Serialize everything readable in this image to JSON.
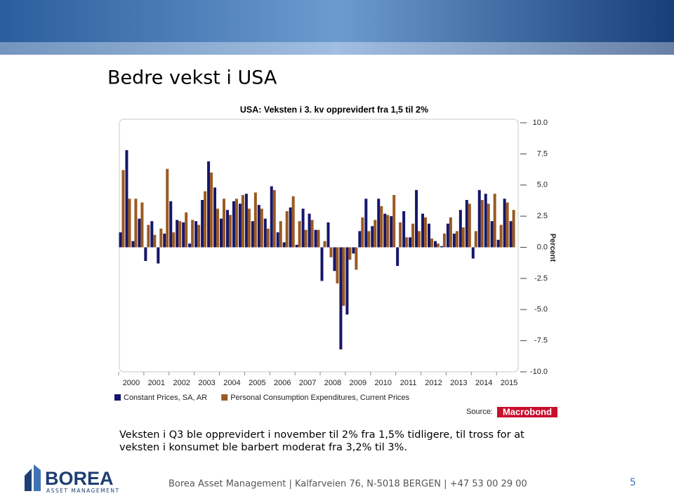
{
  "header": {
    "title": "Bedre vekst i USA"
  },
  "chart_data": {
    "type": "bar",
    "title": "USA: Veksten i 3. kv oppre­vidert fra 1,5 til 2%",
    "ylabel": "Percent",
    "categories": [
      "2000",
      null,
      null,
      null,
      "2001",
      null,
      null,
      null,
      "2002",
      null,
      null,
      null,
      "2003",
      null,
      null,
      null,
      "2004",
      null,
      null,
      null,
      "2005",
      null,
      null,
      null,
      "2006",
      null,
      null,
      null,
      "2007",
      null,
      null,
      null,
      "2008",
      null,
      null,
      null,
      "2009",
      null,
      null,
      null,
      "2010",
      null,
      null,
      null,
      "2011",
      null,
      null,
      null,
      "2012",
      null,
      null,
      null,
      "2013",
      null,
      null,
      null,
      "2014",
      null,
      null,
      null,
      "2015",
      null,
      null
    ],
    "series": [
      {
        "name": "Constant Prices, SA, AR",
        "color": "#16166b",
        "values": [
          1.2,
          7.8,
          0.5,
          2.3,
          -1.1,
          2.1,
          -1.3,
          1.1,
          3.7,
          2.2,
          2.0,
          0.3,
          2.1,
          3.8,
          6.9,
          4.8,
          2.3,
          3.0,
          3.7,
          3.5,
          4.3,
          2.1,
          3.4,
          2.3,
          4.9,
          1.2,
          0.4,
          3.2,
          0.2,
          3.1,
          2.7,
          1.4,
          -2.7,
          2.0,
          -1.9,
          -8.2,
          -5.4,
          -0.5,
          1.3,
          3.9,
          1.7,
          3.9,
          2.7,
          2.5,
          -1.5,
          2.9,
          0.8,
          4.6,
          2.7,
          1.9,
          0.5,
          0.1,
          1.9,
          1.1,
          3.0,
          3.8,
          -0.9,
          4.6,
          4.3,
          2.1,
          0.6,
          3.9,
          2.1
        ]
      },
      {
        "name": "Personal Consumption Expenditures, Current Prices",
        "color": "#9a5a22",
        "values": [
          6.2,
          3.9,
          3.9,
          3.6,
          1.8,
          1.0,
          1.5,
          6.3,
          1.2,
          2.1,
          2.8,
          2.2,
          1.8,
          4.5,
          6.0,
          3.1,
          3.9,
          2.6,
          3.9,
          4.2,
          3.1,
          4.4,
          3.1,
          1.5,
          4.6,
          2.1,
          2.9,
          4.1,
          2.1,
          1.4,
          2.2,
          1.4,
          0.5,
          -0.8,
          -2.9,
          -4.7,
          -1.0,
          -1.8,
          2.4,
          1.3,
          2.2,
          3.3,
          2.6,
          4.2,
          2.0,
          0.8,
          1.9,
          1.3,
          2.4,
          0.7,
          0.3,
          1.1,
          2.4,
          1.3,
          1.6,
          3.5,
          1.3,
          3.8,
          3.5,
          4.3,
          1.8,
          3.6,
          3.0
        ]
      }
    ],
    "ylim": [
      -10,
      10
    ],
    "yticks": [
      {
        "value": 10,
        "label": "10.0"
      },
      7.5,
      {
        "value": 5,
        "label": "5.0"
      },
      2.5,
      {
        "value": 0,
        "label": "0.0"
      },
      -2.5,
      {
        "value": -5,
        "label": "-5.0"
      },
      -7.5,
      {
        "value": -10,
        "label": "-10.0"
      }
    ],
    "yaxis_position": "right",
    "legend": "bottom",
    "source_label": "Source:",
    "source": "Macrobond"
  },
  "body": {
    "lines": [
      "Veksten i Q3 ble oppre­vidert i november til 2% fra 1,5% tidligere, til tross for at",
      "veksten i konsumet ble barbert moderat fra 3,2% til 3%."
    ]
  },
  "footer": {
    "logo": "BOREA",
    "logo_subtitle": "ASSET MANAGEMENT",
    "text": "Borea Asset Management | Kalfarveien 76, N-5018 BERGEN | +47 53 00 29 00",
    "page": "5"
  }
}
